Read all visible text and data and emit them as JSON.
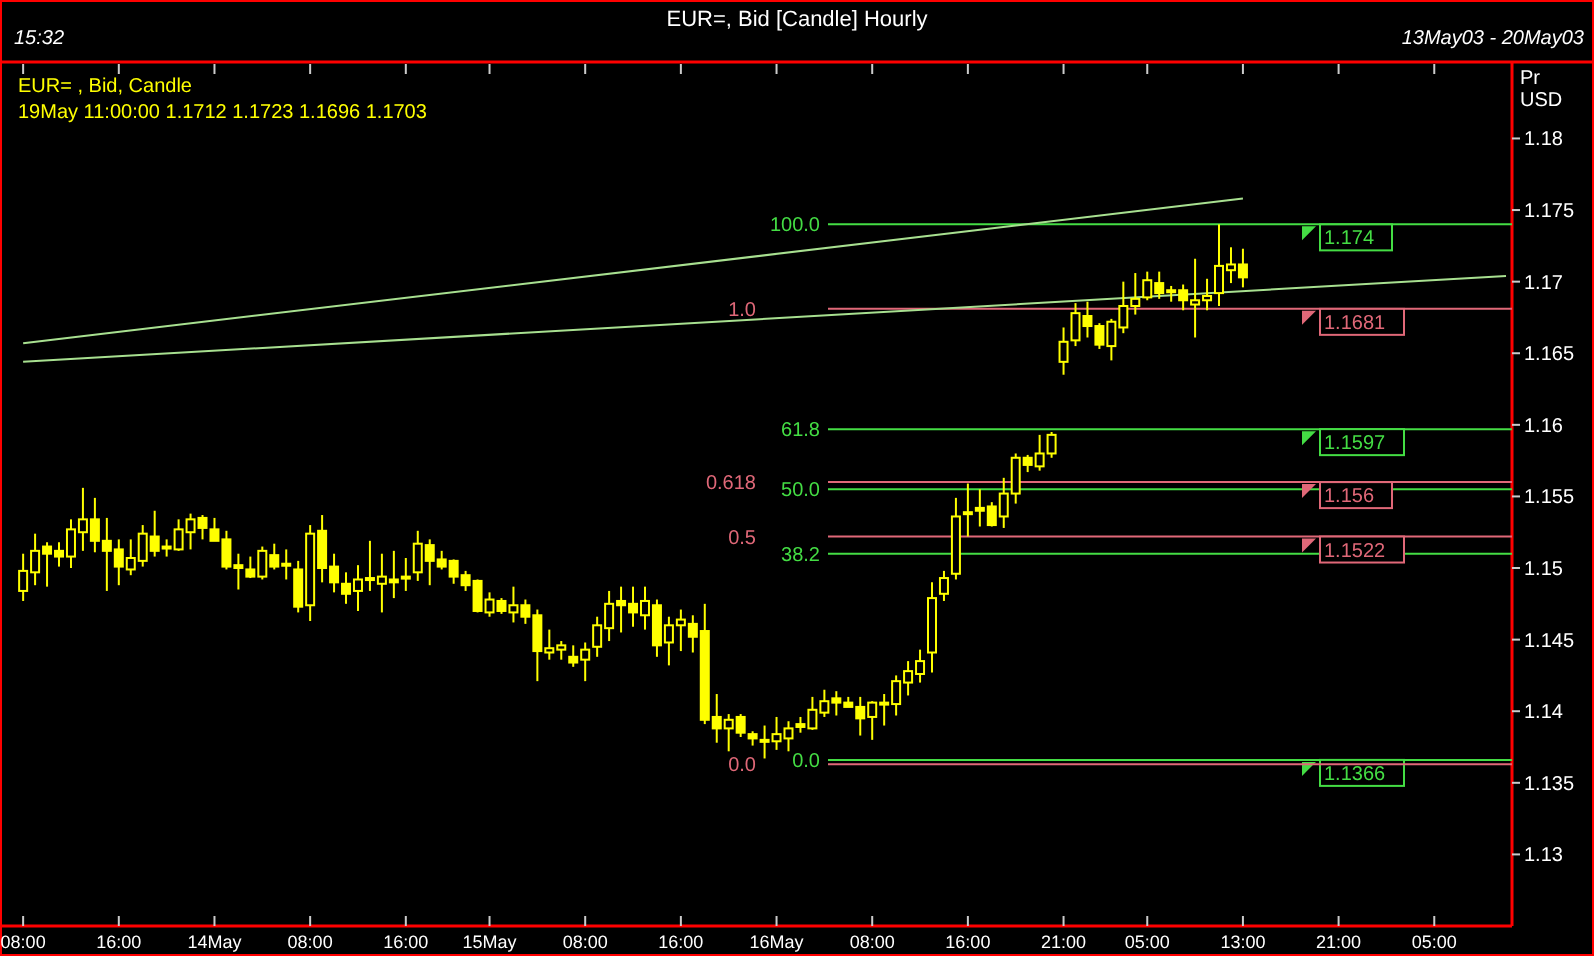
{
  "chart_data": {
    "type": "candlestick",
    "title": "EUR=, Bid [Candle] Hourly",
    "subtitle": "13May03 - 20May03",
    "ylabel": "Pr USD",
    "color": "#ffff00",
    "annotations": [
      "15:32",
      "EUR= , Bid, Candle",
      "19May 11:00:00 1.1712 1.1723 1.1696 1.1703",
      "100.0",
      "61.8",
      "50.0",
      "38.2",
      "0.0",
      "1.0",
      "0.618",
      "0.5",
      "0.0"
    ],
    "categories": [
      "08:00",
      null,
      null,
      null,
      null,
      null,
      null,
      null,
      "16:00",
      null,
      null,
      null,
      null,
      null,
      null,
      null,
      "14May",
      null,
      null,
      null,
      null,
      null,
      null,
      null,
      "08:00",
      null,
      null,
      null,
      null,
      null,
      null,
      null,
      "16:00",
      null,
      null,
      null,
      null,
      null,
      null,
      "15May",
      null,
      null,
      null,
      null,
      null,
      null,
      null,
      "08:00",
      null,
      null,
      null,
      null,
      null,
      null,
      null,
      "16:00",
      null,
      null,
      null,
      null,
      null,
      null,
      null,
      "16May",
      null,
      null,
      null,
      null,
      null,
      null,
      null,
      "08:00",
      null,
      null,
      null,
      null,
      null,
      null,
      null,
      "16:00",
      null,
      null,
      null,
      null,
      null,
      null,
      null,
      "21:00",
      null,
      null,
      null,
      null,
      null,
      null,
      "05:00",
      null,
      null,
      null,
      null,
      null,
      null,
      null,
      "13:00",
      null,
      null,
      null,
      null,
      null,
      null,
      null,
      "21:00",
      null,
      null,
      null,
      null,
      null,
      null,
      null,
      "05:00",
      null,
      null,
      null,
      null,
      null,
      null
    ],
    "ylim": [
      1.125,
      1.1852
    ],
    "yticks": [
      1.13,
      1.135,
      1.14,
      1.145,
      1.15,
      1.155,
      1.16,
      1.165,
      1.17,
      1.175,
      1.18
    ],
    "ohlc": [
      [
        1.1484,
        1.151,
        1.1477,
        1.1498
      ],
      [
        1.1497,
        1.1524,
        1.1488,
        1.1512
      ],
      [
        1.1515,
        1.1518,
        1.1487,
        1.151
      ],
      [
        1.1512,
        1.1518,
        1.1501,
        1.1508
      ],
      [
        1.1508,
        1.1534,
        1.15,
        1.1527
      ],
      [
        1.1525,
        1.1556,
        1.1512,
        1.1534
      ],
      [
        1.1534,
        1.1549,
        1.1511,
        1.1519
      ],
      [
        1.1519,
        1.1535,
        1.1484,
        1.1512
      ],
      [
        1.1513,
        1.152,
        1.1488,
        1.1501
      ],
      [
        1.1499,
        1.152,
        1.1495,
        1.1507
      ],
      [
        1.1505,
        1.153,
        1.1501,
        1.1524
      ],
      [
        1.1522,
        1.154,
        1.1508,
        1.1512
      ],
      [
        1.1515,
        1.152,
        1.1508,
        1.1515
      ],
      [
        1.1513,
        1.1534,
        1.1512,
        1.1527
      ],
      [
        1.1525,
        1.1538,
        1.1513,
        1.1534
      ],
      [
        1.1535,
        1.1537,
        1.152,
        1.1528
      ],
      [
        1.1527,
        1.1535,
        1.1519,
        1.1519
      ],
      [
        1.152,
        1.1526,
        1.1499,
        1.1501
      ],
      [
        1.1502,
        1.151,
        1.1485,
        1.15
      ],
      [
        1.1499,
        1.1508,
        1.1493,
        1.1494
      ],
      [
        1.1494,
        1.1515,
        1.1492,
        1.1512
      ],
      [
        1.1509,
        1.1517,
        1.1499,
        1.1501
      ],
      [
        1.1503,
        1.1513,
        1.1492,
        1.1503
      ],
      [
        1.1499,
        1.1505,
        1.1469,
        1.1473
      ],
      [
        1.1474,
        1.153,
        1.1463,
        1.1524
      ],
      [
        1.1526,
        1.1537,
        1.149,
        1.15
      ],
      [
        1.1501,
        1.151,
        1.1483,
        1.149
      ],
      [
        1.1489,
        1.1497,
        1.1475,
        1.1482
      ],
      [
        1.1484,
        1.1502,
        1.147,
        1.1492
      ],
      [
        1.1493,
        1.1519,
        1.1484,
        1.1493
      ],
      [
        1.1489,
        1.151,
        1.1469,
        1.1494
      ],
      [
        1.1492,
        1.1512,
        1.1479,
        1.149
      ],
      [
        1.1494,
        1.1507,
        1.1484,
        1.1494
      ],
      [
        1.1497,
        1.1526,
        1.1491,
        1.1517
      ],
      [
        1.1516,
        1.152,
        1.1488,
        1.1505
      ],
      [
        1.1506,
        1.1512,
        1.1499,
        1.1501
      ],
      [
        1.1505,
        1.1506,
        1.1489,
        1.1494
      ],
      [
        1.1495,
        1.1498,
        1.1484,
        1.1488
      ],
      [
        1.1491,
        1.1492,
        1.1469,
        1.147
      ],
      [
        1.1469,
        1.1483,
        1.1466,
        1.1478
      ],
      [
        1.1477,
        1.1479,
        1.1468,
        1.147
      ],
      [
        1.1469,
        1.1487,
        1.1462,
        1.1474
      ],
      [
        1.1474,
        1.1478,
        1.1461,
        1.1466
      ],
      [
        1.1467,
        1.1471,
        1.1421,
        1.1442
      ],
      [
        1.1441,
        1.1457,
        1.1436,
        1.1444
      ],
      [
        1.1443,
        1.1449,
        1.1436,
        1.1446
      ],
      [
        1.1438,
        1.1446,
        1.1431,
        1.1434
      ],
      [
        1.1436,
        1.1448,
        1.1421,
        1.1443
      ],
      [
        1.1445,
        1.1466,
        1.1438,
        1.146
      ],
      [
        1.1458,
        1.1484,
        1.1449,
        1.1475
      ],
      [
        1.1477,
        1.1487,
        1.1455,
        1.1474
      ],
      [
        1.1475,
        1.1487,
        1.1459,
        1.1469
      ],
      [
        1.1467,
        1.1487,
        1.1457,
        1.1477
      ],
      [
        1.1474,
        1.1478,
        1.1438,
        1.1446
      ],
      [
        1.1448,
        1.1466,
        1.1432,
        1.146
      ],
      [
        1.146,
        1.1471,
        1.1442,
        1.1464
      ],
      [
        1.1461,
        1.1467,
        1.1441,
        1.1452
      ],
      [
        1.1456,
        1.1475,
        1.1391,
        1.1394
      ],
      [
        1.1396,
        1.1412,
        1.1378,
        1.1388
      ],
      [
        1.1388,
        1.1398,
        1.1372,
        1.1394
      ],
      [
        1.1396,
        1.1398,
        1.1382,
        1.1385
      ],
      [
        1.1384,
        1.1386,
        1.1376,
        1.1381
      ],
      [
        1.138,
        1.139,
        1.1367,
        1.138
      ],
      [
        1.1379,
        1.1396,
        1.1373,
        1.1384
      ],
      [
        1.1381,
        1.1393,
        1.1372,
        1.1388
      ],
      [
        1.1391,
        1.1396,
        1.1385,
        1.1389
      ],
      [
        1.1388,
        1.141,
        1.1387,
        1.1401
      ],
      [
        1.1399,
        1.1415,
        1.1396,
        1.1407
      ],
      [
        1.1409,
        1.1414,
        1.1397,
        1.1406
      ],
      [
        1.1406,
        1.141,
        1.1403,
        1.1403
      ],
      [
        1.1403,
        1.141,
        1.1383,
        1.1395
      ],
      [
        1.1396,
        1.1407,
        1.138,
        1.1406
      ],
      [
        1.1406,
        1.1412,
        1.139,
        1.1406
      ],
      [
        1.1405,
        1.1425,
        1.1397,
        1.1421
      ],
      [
        1.142,
        1.1435,
        1.1411,
        1.1428
      ],
      [
        1.1426,
        1.1443,
        1.142,
        1.1435
      ],
      [
        1.1441,
        1.149,
        1.1427,
        1.1479
      ],
      [
        1.1482,
        1.1498,
        1.1477,
        1.1493
      ],
      [
        1.1496,
        1.1549,
        1.1492,
        1.1536
      ],
      [
        1.1539,
        1.1559,
        1.1522,
        1.1539
      ],
      [
        1.1542,
        1.1555,
        1.1529,
        1.154
      ],
      [
        1.1543,
        1.1546,
        1.1529,
        1.153
      ],
      [
        1.1536,
        1.1563,
        1.1528,
        1.1552
      ],
      [
        1.1552,
        1.158,
        1.1545,
        1.1577
      ],
      [
        1.1577,
        1.1579,
        1.1567,
        1.1572
      ],
      [
        1.1571,
        1.1593,
        1.1568,
        1.158
      ],
      [
        1.158,
        1.1595,
        1.1577,
        1.1593
      ],
      [
        1.1644,
        1.1668,
        1.1635,
        1.1658
      ],
      [
        1.1659,
        1.1685,
        1.1655,
        1.1678
      ],
      [
        1.1676,
        1.1686,
        1.1661,
        1.1669
      ],
      [
        1.1669,
        1.1671,
        1.1653,
        1.1656
      ],
      [
        1.1655,
        1.1674,
        1.1645,
        1.1672
      ],
      [
        1.1668,
        1.17,
        1.1664,
        1.1683
      ],
      [
        1.1683,
        1.1706,
        1.1677,
        1.1688
      ],
      [
        1.1689,
        1.1707,
        1.1687,
        1.1701
      ],
      [
        1.1699,
        1.1707,
        1.1688,
        1.1692
      ],
      [
        1.1694,
        1.1697,
        1.1686,
        1.1694
      ],
      [
        1.1694,
        1.1698,
        1.168,
        1.1687
      ],
      [
        1.1684,
        1.1716,
        1.1661,
        1.1687
      ],
      [
        1.1687,
        1.1702,
        1.168,
        1.169
      ],
      [
        1.1692,
        1.174,
        1.1683,
        1.1711
      ],
      [
        1.1708,
        1.1724,
        1.1699,
        1.1712
      ],
      [
        1.1712,
        1.1723,
        1.1696,
        1.1703
      ],
      null,
      null,
      null,
      null,
      null,
      null,
      null,
      null,
      null,
      null,
      null,
      null,
      null,
      null,
      null,
      null,
      null,
      null,
      null,
      null,
      null,
      null
    ],
    "series": [
      {
        "type": "line",
        "color": "#a8e090",
        "values": [
          1.1657,
          null,
          null,
          null,
          null,
          null,
          null,
          null,
          null,
          null,
          null,
          null,
          null,
          null,
          null,
          null,
          null,
          null,
          null,
          null,
          null,
          null,
          null,
          null,
          null,
          null,
          null,
          null,
          null,
          null,
          null,
          null,
          null,
          null,
          null,
          null,
          null,
          null,
          null,
          null,
          null,
          null,
          null,
          null,
          null,
          null,
          null,
          null,
          null,
          null,
          null,
          null,
          null,
          null,
          null,
          null,
          null,
          null,
          null,
          null,
          null,
          null,
          null,
          null,
          null,
          null,
          null,
          null,
          null,
          null,
          null,
          null,
          null,
          null,
          null,
          null,
          null,
          null,
          null,
          null,
          null,
          null,
          null,
          null,
          null,
          null,
          null,
          null,
          null,
          null,
          null,
          null,
          null,
          null,
          null,
          null,
          null,
          null,
          null,
          null,
          null,
          null,
          1.1758,
          null,
          null,
          null,
          null,
          null,
          null,
          null,
          null,
          null,
          null,
          null,
          null,
          null,
          null,
          null,
          null,
          null,
          null,
          null,
          null,
          null,
          null
        ]
      },
      {
        "type": "line",
        "color": "#a8e090",
        "values": [
          1.1644,
          null,
          null,
          null,
          null,
          null,
          null,
          null,
          null,
          null,
          null,
          null,
          null,
          null,
          null,
          null,
          null,
          null,
          null,
          null,
          null,
          null,
          null,
          null,
          null,
          null,
          null,
          null,
          null,
          null,
          null,
          null,
          null,
          null,
          null,
          null,
          null,
          null,
          null,
          null,
          null,
          null,
          null,
          null,
          null,
          null,
          null,
          null,
          null,
          null,
          null,
          null,
          null,
          null,
          null,
          null,
          null,
          null,
          null,
          null,
          null,
          null,
          null,
          null,
          null,
          null,
          null,
          null,
          null,
          null,
          null,
          null,
          null,
          null,
          null,
          null,
          null,
          null,
          null,
          null,
          null,
          null,
          null,
          null,
          null,
          null,
          null,
          null,
          null,
          null,
          null,
          null,
          null,
          null,
          null,
          null,
          null,
          null,
          null,
          null,
          null,
          null,
          null,
          null,
          null,
          null,
          null,
          null,
          null,
          null,
          null,
          null,
          null,
          null,
          null,
          null,
          null,
          null,
          null,
          null,
          null,
          null,
          null,
          null,
          1.1704
        ]
      }
    ],
    "ref_lines": [
      {
        "axis": "y",
        "value": 1.174,
        "label": "1.174",
        "color": "#44dd44"
      },
      {
        "axis": "y",
        "value": 1.1597,
        "label": "1.1597",
        "color": "#44dd44"
      },
      {
        "axis": "y",
        "value": 1.1555,
        "color": "#44dd44"
      },
      {
        "axis": "y",
        "value": 1.151,
        "color": "#44dd44"
      },
      {
        "axis": "y",
        "value": 1.1366,
        "label": "1.1366",
        "color": "#44dd44"
      },
      {
        "axis": "y",
        "value": 1.1681,
        "label": "1.1681",
        "color": "#e06878"
      },
      {
        "axis": "y",
        "value": 1.156,
        "label": "1.156",
        "color": "#e06878"
      },
      {
        "axis": "y",
        "value": 1.1522,
        "label": "1.1522",
        "color": "#e06878"
      },
      {
        "axis": "y",
        "value": 1.1363,
        "color": "#e06878"
      }
    ]
  }
}
